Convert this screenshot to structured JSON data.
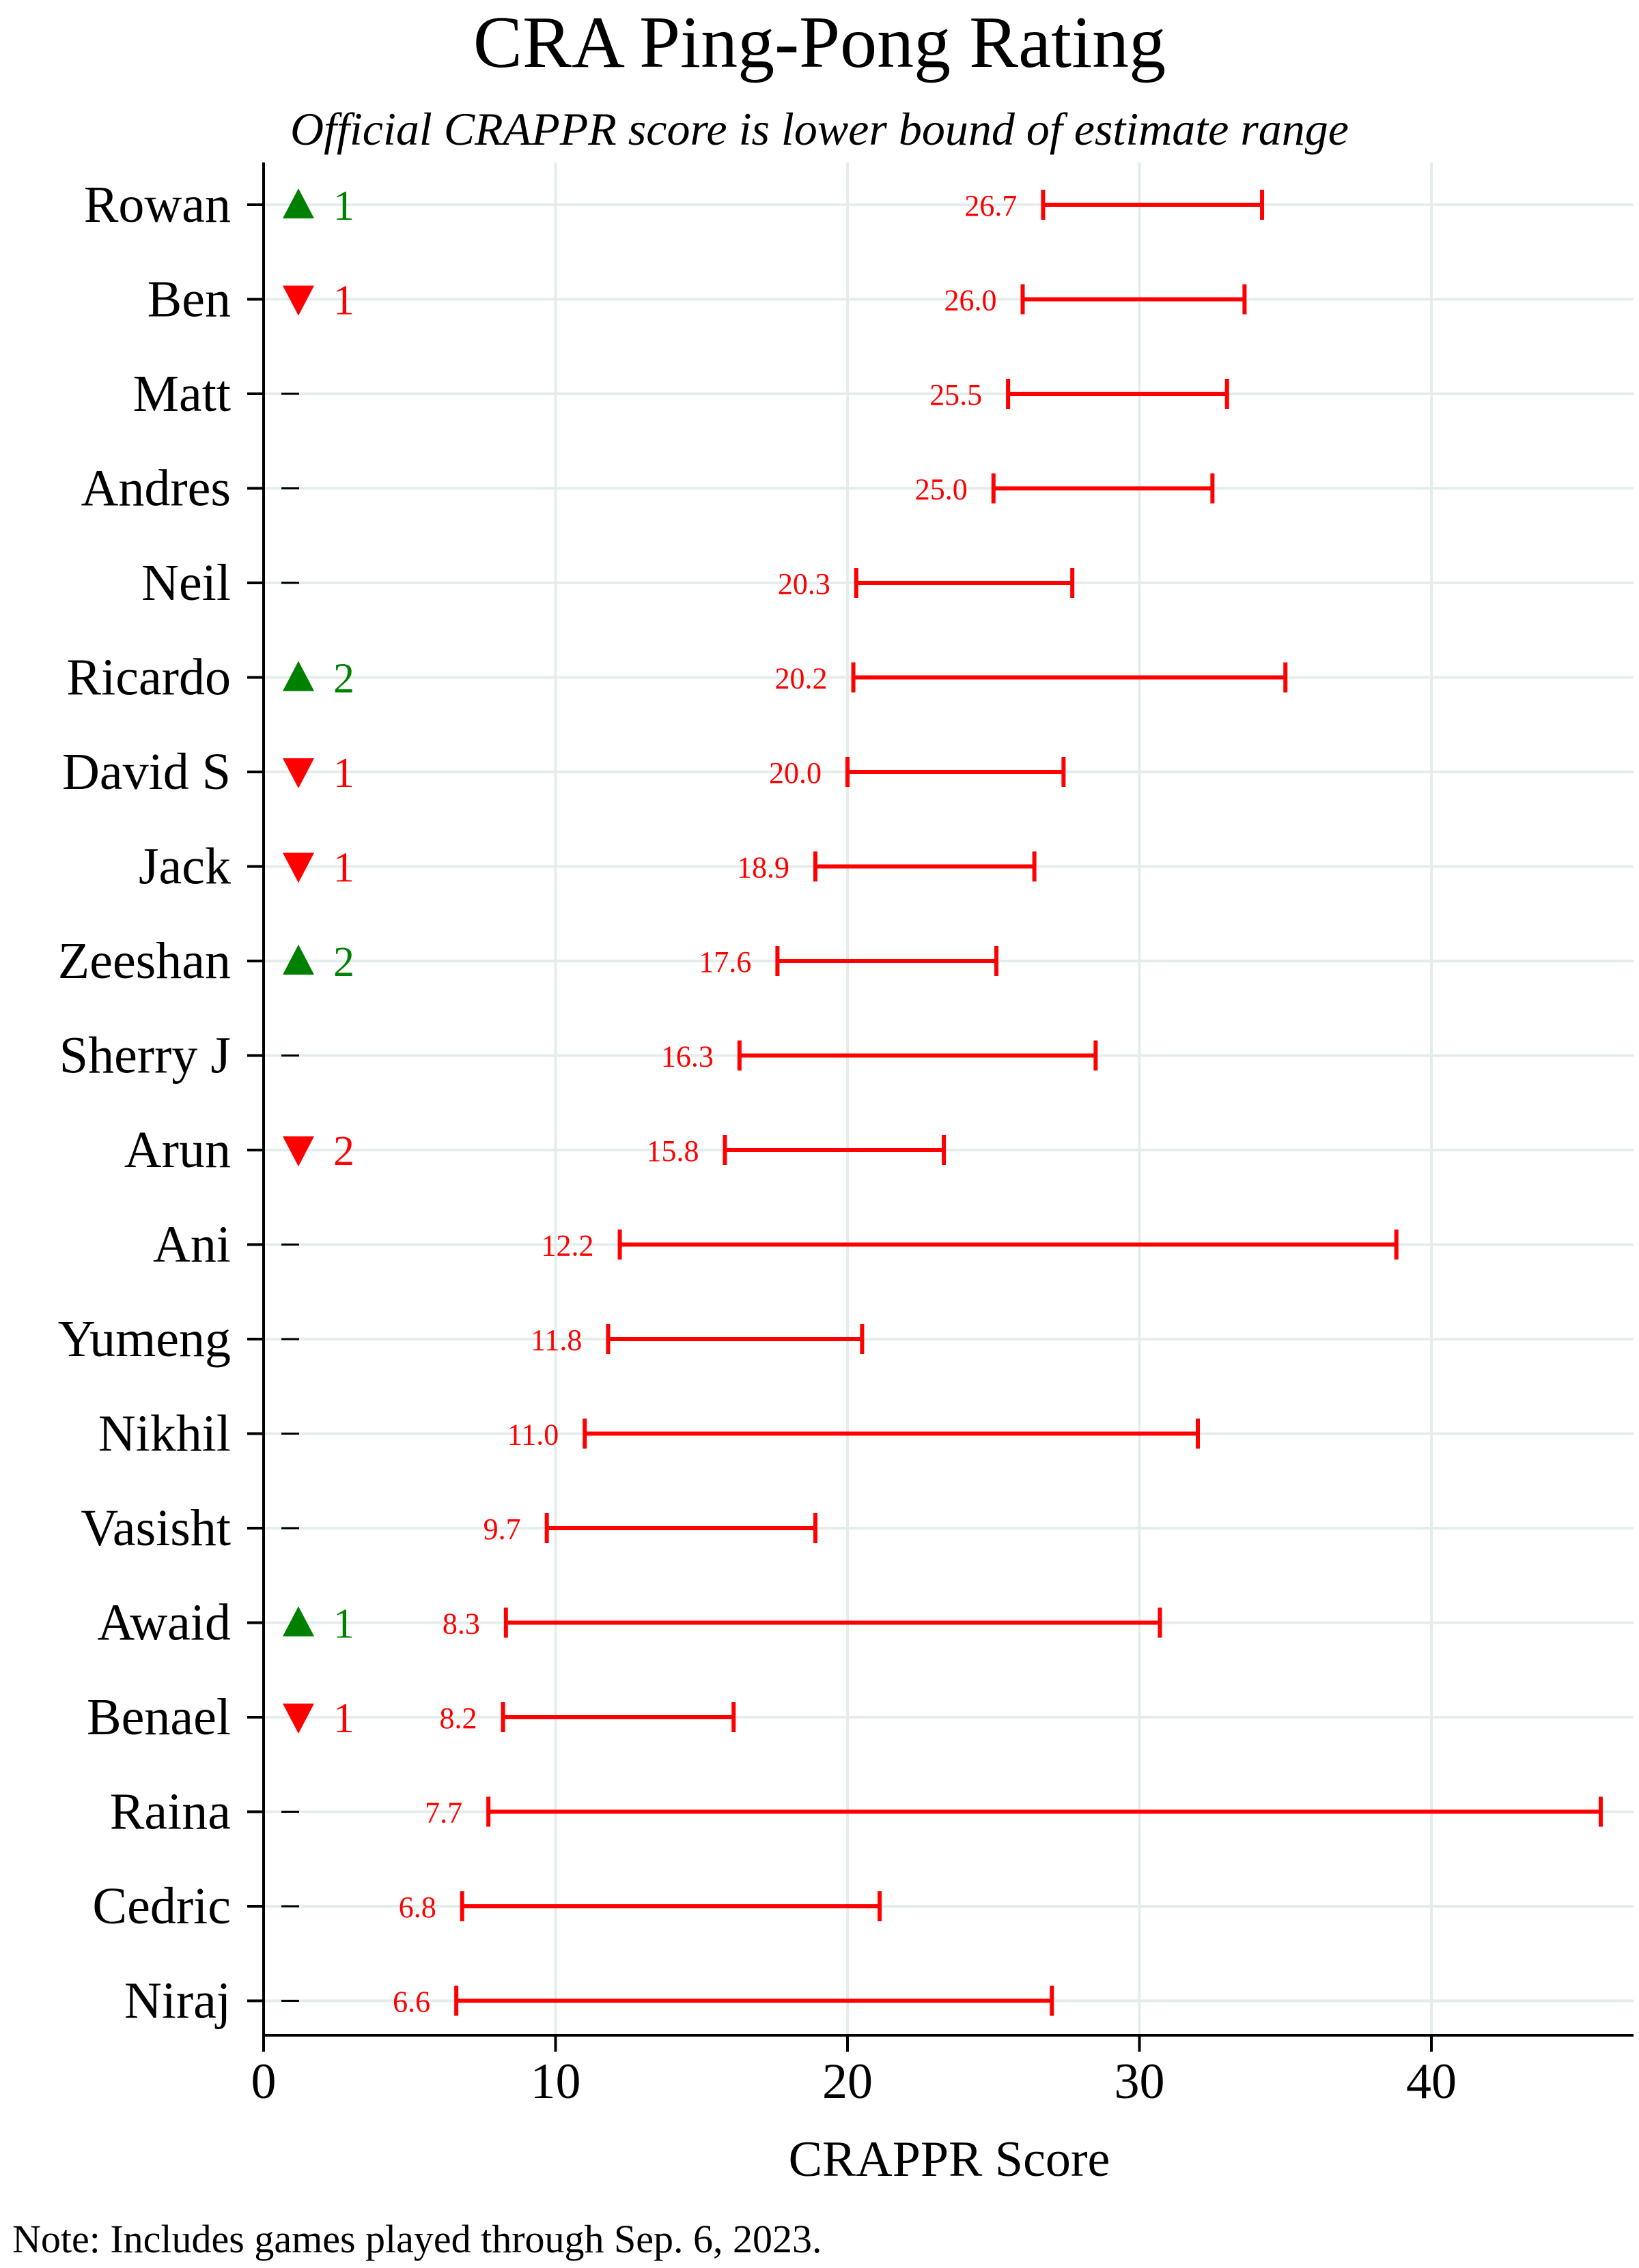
{
  "chart_data": {
    "type": "interval",
    "title": "CRA Ping-Pong Rating",
    "subtitle": "Official CRAPPR score is lower bound of estimate range",
    "xlabel": "CRAPPR Score",
    "note": "Note: Includes games played through Sep. 6, 2023.",
    "xlim": [
      0,
      46.5
    ],
    "xticks": [
      0,
      10,
      20,
      30,
      40
    ],
    "grid": true,
    "colors": {
      "interval": "#ff0000",
      "up": "#008000",
      "down": "#ff0000",
      "axis": "#000000",
      "grid": "#e4ecec"
    },
    "players": [
      {
        "name": "Rowan",
        "change": "up",
        "change_value": "1",
        "lower": 26.7,
        "upper": 34.2,
        "label": "26.7"
      },
      {
        "name": "Ben",
        "change": "down",
        "change_value": "1",
        "lower": 26.0,
        "upper": 33.6,
        "label": "26.0"
      },
      {
        "name": "Matt",
        "change": "none",
        "change_value": "",
        "lower": 25.5,
        "upper": 33.0,
        "label": "25.5"
      },
      {
        "name": "Andres",
        "change": "none",
        "change_value": "",
        "lower": 25.0,
        "upper": 32.5,
        "label": "25.0"
      },
      {
        "name": "Neil",
        "change": "none",
        "change_value": "",
        "lower": 20.3,
        "upper": 27.7,
        "label": "20.3"
      },
      {
        "name": "Ricardo",
        "change": "up",
        "change_value": "2",
        "lower": 20.2,
        "upper": 35.0,
        "label": "20.2"
      },
      {
        "name": "David S",
        "change": "down",
        "change_value": "1",
        "lower": 20.0,
        "upper": 27.4,
        "label": "20.0"
      },
      {
        "name": "Jack",
        "change": "down",
        "change_value": "1",
        "lower": 18.9,
        "upper": 26.4,
        "label": "18.9"
      },
      {
        "name": "Zeeshan",
        "change": "up",
        "change_value": "2",
        "lower": 17.6,
        "upper": 25.1,
        "label": "17.6"
      },
      {
        "name": "Sherry J",
        "change": "none",
        "change_value": "",
        "lower": 16.3,
        "upper": 28.5,
        "label": "16.3"
      },
      {
        "name": "Arun",
        "change": "down",
        "change_value": "2",
        "lower": 15.8,
        "upper": 23.3,
        "label": "15.8"
      },
      {
        "name": "Ani",
        "change": "none",
        "change_value": "",
        "lower": 12.2,
        "upper": 38.8,
        "label": "12.2"
      },
      {
        "name": "Yumeng",
        "change": "none",
        "change_value": "",
        "lower": 11.8,
        "upper": 20.5,
        "label": "11.8"
      },
      {
        "name": "Nikhil",
        "change": "none",
        "change_value": "",
        "lower": 11.0,
        "upper": 32.0,
        "label": "11.0"
      },
      {
        "name": "Vasisht",
        "change": "none",
        "change_value": "",
        "lower": 9.7,
        "upper": 18.9,
        "label": "9.7"
      },
      {
        "name": "Awaid",
        "change": "up",
        "change_value": "1",
        "lower": 8.3,
        "upper": 30.7,
        "label": "8.3"
      },
      {
        "name": "Benael",
        "change": "down",
        "change_value": "1",
        "lower": 8.2,
        "upper": 16.1,
        "label": "8.2"
      },
      {
        "name": "Raina",
        "change": "none",
        "change_value": "",
        "lower": 7.7,
        "upper": 45.8,
        "label": "7.7"
      },
      {
        "name": "Cedric",
        "change": "none",
        "change_value": "",
        "lower": 6.8,
        "upper": 21.1,
        "label": "6.8"
      },
      {
        "name": "Niraj",
        "change": "none",
        "change_value": "",
        "lower": 6.6,
        "upper": 27.0,
        "label": "6.6"
      }
    ]
  }
}
